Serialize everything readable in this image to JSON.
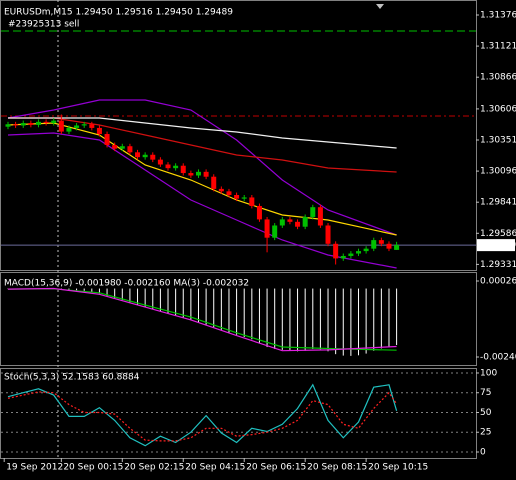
{
  "chart_data": [
    {
      "type": "candlestick",
      "title": "EURUSDm,M15  1.29450 1.29516 1.29450 1.29489",
      "xlim": [
        -1.05,
        61.42
      ],
      "ylim": [
        1.29285,
        1.31499
      ],
      "yticks": [
        1.31376,
        1.31121,
        1.30866,
        1.30606,
        1.30351,
        1.30096,
        1.29841,
        1.29586,
        1.29331
      ],
      "up_color": "#00c000",
      "down_color": "#ff0000",
      "open": [
        1.3046,
        1.3048,
        1.3047,
        1.3049,
        1.30475,
        1.305,
        1.3049,
        1.3051,
        1.3042,
        1.3045,
        1.3047,
        1.3048,
        1.3045,
        1.304,
        1.3031,
        1.3028,
        1.303,
        1.3025,
        1.3021,
        1.3023,
        1.3019,
        1.3015,
        1.3012,
        1.3014,
        1.3008,
        1.3006,
        1.3009,
        1.3005,
        1.2995,
        1.2993,
        1.299,
        1.2987,
        1.2988,
        1.2981,
        1.297,
        1.2955,
        1.2965,
        1.297,
        1.2968,
        1.2964,
        1.2972,
        1.298,
        1.2965,
        1.295,
        1.2938,
        1.294,
        1.2942,
        1.2944,
        1.2946,
        1.2953,
        1.295,
        1.2945
      ],
      "high": [
        1.305,
        1.305,
        1.3051,
        1.3051,
        1.3052,
        1.3052,
        1.3053,
        1.3056,
        1.3047,
        1.3049,
        1.305,
        1.305,
        1.3047,
        1.3042,
        1.3033,
        1.3032,
        1.3032,
        1.3027,
        1.3025,
        1.3025,
        1.3021,
        1.3017,
        1.3016,
        1.3016,
        1.301,
        1.3011,
        1.3011,
        1.3007,
        1.2997,
        1.2995,
        1.2992,
        1.299,
        1.299,
        1.2983,
        1.2972,
        1.2967,
        1.2972,
        1.2972,
        1.297,
        1.2974,
        1.2982,
        1.2982,
        1.2967,
        1.2952,
        1.2942,
        1.2944,
        1.2946,
        1.2948,
        1.2955,
        1.2955,
        1.2952,
        1.29516
      ],
      "low": [
        1.3044,
        1.3045,
        1.3045,
        1.30455,
        1.30455,
        1.3047,
        1.3047,
        1.304,
        1.304,
        1.3043,
        1.3045,
        1.3043,
        1.3038,
        1.3029,
        1.3026,
        1.3026,
        1.3023,
        1.3019,
        1.3019,
        1.3017,
        1.3013,
        1.301,
        1.301,
        1.3006,
        1.3004,
        1.3004,
        1.3003,
        1.2993,
        1.2991,
        1.2988,
        1.2985,
        1.2985,
        1.2979,
        1.2968,
        1.2943,
        1.2953,
        1.2963,
        1.2966,
        1.2962,
        1.2962,
        1.297,
        1.2963,
        1.2948,
        1.2933,
        1.2936,
        1.2938,
        1.294,
        1.2942,
        1.2944,
        1.2948,
        1.2944,
        1.2945
      ],
      "close": [
        1.3048,
        1.3047,
        1.3049,
        1.30475,
        1.305,
        1.3049,
        1.3051,
        1.3042,
        1.3045,
        1.3047,
        1.3048,
        1.3045,
        1.304,
        1.3031,
        1.3028,
        1.303,
        1.3025,
        1.3021,
        1.3023,
        1.3019,
        1.3015,
        1.3012,
        1.3014,
        1.3008,
        1.3006,
        1.3009,
        1.3005,
        1.2995,
        1.2993,
        1.299,
        1.2987,
        1.2988,
        1.2981,
        1.297,
        1.2955,
        1.2965,
        1.297,
        1.2968,
        1.2964,
        1.2972,
        1.298,
        1.2965,
        1.295,
        1.2938,
        1.294,
        1.2942,
        1.2944,
        1.2946,
        1.2953,
        1.295,
        1.2946,
        1.29489
      ],
      "series": [
        {
          "color": "#9400d3",
          "x": [
            0,
            6,
            12,
            18,
            24,
            30,
            36,
            42,
            51
          ],
          "values": [
            1.30531,
            1.30597,
            1.30679,
            1.30679,
            1.30597,
            1.30351,
            1.30023,
            1.29777,
            1.29572
          ]
        },
        {
          "color": "#9400d3",
          "x": [
            0,
            6,
            12,
            18,
            24,
            30,
            36,
            42,
            51
          ],
          "values": [
            1.30392,
            1.30408,
            1.30351,
            1.30105,
            1.29859,
            1.29695,
            1.29531,
            1.29408,
            1.29301
          ]
        },
        {
          "color": "#ffd700",
          "x": [
            0,
            6,
            12,
            18,
            24,
            30,
            36,
            42,
            51
          ],
          "values": [
            1.30474,
            1.3049,
            1.30392,
            1.30146,
            1.30023,
            1.29859,
            1.29736,
            1.29695,
            1.29572
          ]
        },
        {
          "color": "#d01010",
          "x": [
            0,
            6,
            12,
            18,
            24,
            30,
            36,
            42,
            51
          ],
          "values": [
            1.30531,
            1.30531,
            1.30474,
            1.30392,
            1.3031,
            1.30228,
            1.30187,
            1.30121,
            1.30089
          ]
        },
        {
          "color": "#f0f0f0",
          "x": [
            0,
            6,
            12,
            18,
            24,
            30,
            36,
            42,
            51
          ],
          "values": [
            1.30531,
            1.30531,
            1.30531,
            1.3049,
            1.30449,
            1.30417,
            1.30367,
            1.30335,
            1.30285
          ]
        }
      ],
      "hlines": [
        {
          "value": 1.31245,
          "color": "#00c000",
          "dash": "8,4",
          "label": "#23925313 sell"
        },
        {
          "value": 1.30548,
          "color": "#c00000",
          "dash": "6,3,2,3"
        },
        {
          "value": 1.29489,
          "color": "#6c6c9c",
          "tag": true
        }
      ]
    },
    {
      "type": "macd",
      "title": "MACD(15,36,9) -0.001980 -0.002160  MA(3) -0.002032",
      "xlim": [
        -1.05,
        61.42
      ],
      "ylim": [
        -0.00268,
        0.00058
      ],
      "yticks": [
        0.000264,
        {
          "value": -0.0024,
          "label": "-0.00240"
        }
      ],
      "color": "#ffffff",
      "values": [
        -2e-05,
        -3e-05,
        -2e-05,
        -1e-05,
        -1e-05,
        0,
        1e-05,
        -2e-05,
        -4e-05,
        -6e-05,
        -8e-05,
        -0.00012,
        -0.00018,
        -0.00026,
        -0.00033,
        -0.0004,
        -0.00048,
        -0.00056,
        -0.00063,
        -0.00071,
        -0.00079,
        -0.00087,
        -0.00094,
        -0.00103,
        -0.00111,
        -0.00118,
        -0.00126,
        -0.00136,
        -0.00145,
        -0.00154,
        -0.00162,
        -0.0017,
        -0.00178,
        -0.0019,
        -0.00205,
        -0.00212,
        -0.00215,
        -0.00218,
        -0.0022,
        -0.00218,
        -0.00212,
        -0.00213,
        -0.0022,
        -0.0023,
        -0.00235,
        -0.00236,
        -0.00234,
        -0.00228,
        -0.00218,
        -0.0021,
        -0.00204,
        -0.00198
      ],
      "series": [
        {
          "color": "#00c000",
          "x": [
            0,
            6,
            12,
            18,
            24,
            30,
            36,
            42,
            51
          ],
          "values": [
            -2e-05,
            -1e-05,
            -0.00015,
            -0.00058,
            -0.001,
            -0.00155,
            -0.00205,
            -0.0021,
            -0.00216
          ]
        },
        {
          "color": "#e020e0",
          "x": [
            0,
            6,
            12,
            18,
            24,
            30,
            36,
            42,
            51
          ],
          "values": [
            -2e-05,
            0,
            -0.0002,
            -0.00065,
            -0.0011,
            -0.00165,
            -0.00218,
            -0.00215,
            -0.00203
          ]
        }
      ]
    },
    {
      "type": "line",
      "title": "Stoch(5,3,3) 52.1583 60.8884",
      "xlim": [
        -1.05,
        61.42
      ],
      "ylim": [
        -7.6,
        106.3
      ],
      "yticks": [
        100,
        75,
        50,
        25,
        0
      ],
      "grid": true,
      "xticks": [
        {
          "value": -0.5,
          "label": "19 Sep 2012"
        },
        {
          "value": 7,
          "label": "20 Sep 00:15"
        },
        {
          "value": 15,
          "label": "20 Sep 02:15"
        },
        {
          "value": 23,
          "label": "20 Sep 04:15"
        },
        {
          "value": 31,
          "label": "20 Sep 06:15"
        },
        {
          "value": 39,
          "label": "20 Sep 08:15"
        },
        {
          "value": 47,
          "label": "20 Sep 10:15"
        }
      ],
      "series": [
        {
          "color": "#20c0c0",
          "x": [
            0,
            2,
            4,
            6,
            8,
            10,
            12,
            14,
            16,
            18,
            20,
            22,
            24,
            26,
            28,
            30,
            32,
            34,
            36,
            38,
            40,
            42,
            44,
            46,
            48,
            50,
            51
          ],
          "values": [
            70,
            75,
            80,
            72,
            45,
            45,
            56,
            40,
            18,
            8,
            20,
            12,
            25,
            46,
            24,
            12,
            30,
            26,
            35,
            55,
            85,
            40,
            18,
            38,
            82,
            85,
            52.1583
          ]
        },
        {
          "color": "#ff2020",
          "dash": "2,2",
          "x": [
            0,
            2,
            4,
            6,
            8,
            10,
            12,
            14,
            16,
            18,
            20,
            22,
            24,
            26,
            28,
            30,
            32,
            34,
            36,
            38,
            40,
            42,
            44,
            46,
            48,
            50,
            51
          ],
          "values": [
            68,
            72,
            76,
            75,
            60,
            50,
            50,
            48,
            30,
            15,
            14,
            14,
            18,
            30,
            30,
            20,
            22,
            25,
            30,
            40,
            65,
            60,
            35,
            30,
            55,
            75,
            60.8884
          ]
        }
      ]
    }
  ]
}
